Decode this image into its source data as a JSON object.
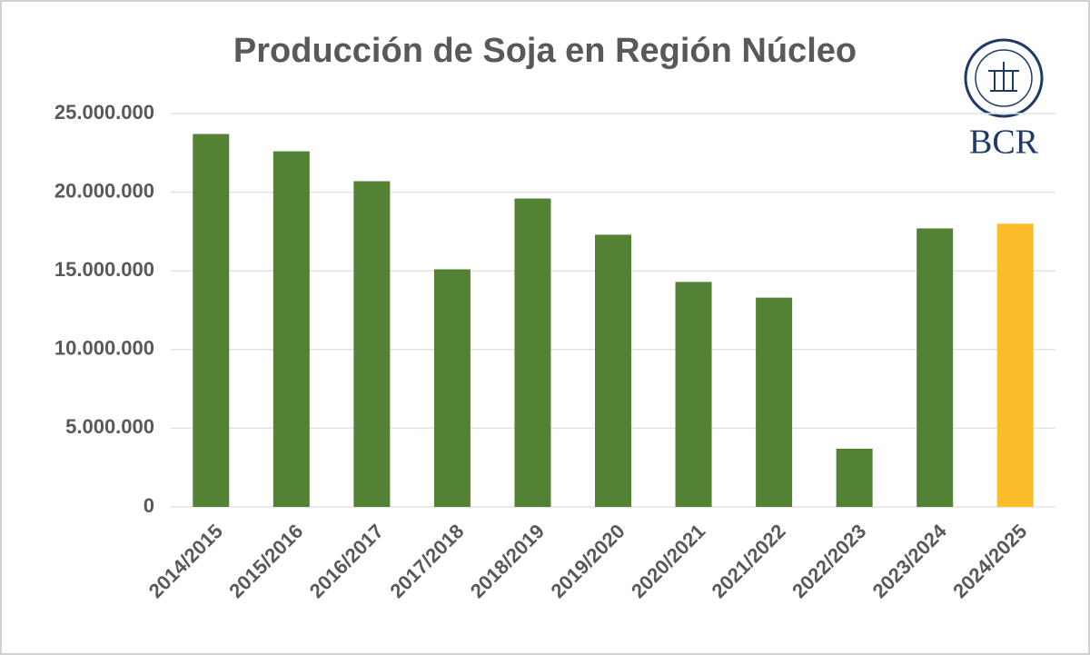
{
  "chart_data": {
    "type": "bar",
    "title": "Producción de Soja en Región Núcleo",
    "logo_text": "BCR",
    "categories": [
      "2014/2015",
      "2015/2016",
      "2016/2017",
      "2017/2018",
      "2018/2019",
      "2019/2020",
      "2020/2021",
      "2021/2022",
      "2022/2023",
      "2023/2024",
      "2024/2025"
    ],
    "values": [
      23700000,
      22600000,
      20700000,
      15100000,
      19600000,
      17300000,
      14300000,
      13300000,
      3700000,
      17700000,
      18000000
    ],
    "colors": [
      "#548235",
      "#548235",
      "#548235",
      "#548235",
      "#548235",
      "#548235",
      "#548235",
      "#548235",
      "#548235",
      "#548235",
      "#fbbc2a"
    ],
    "ylim": [
      0,
      25000000
    ],
    "yticks": [
      0,
      {
        "value": 5000000,
        "label": "5.000.000"
      },
      {
        "value": 10000000,
        "label": "10.000.000"
      },
      {
        "value": 15000000,
        "label": "15.000.000"
      },
      {
        "value": 20000000,
        "label": "20.000.000"
      },
      {
        "value": 25000000,
        "label": "25.000.000"
      }
    ],
    "grid": true
  }
}
